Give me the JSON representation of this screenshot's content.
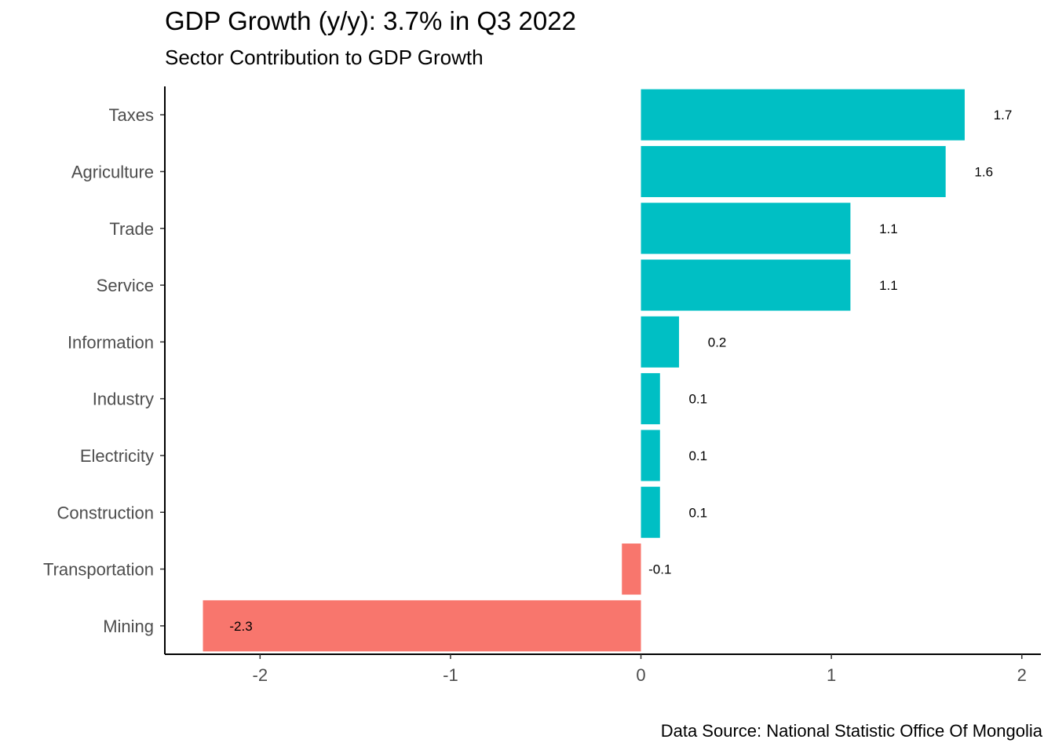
{
  "chart_data": {
    "type": "bar",
    "orientation": "horizontal",
    "title": "GDP Growth (y/y): 3.7% in Q3 2022",
    "subtitle": "Sector Contribution to GDP Growth",
    "caption": "Data Source: National Statistic Office Of Mongolia",
    "xlabel": "",
    "ylabel": "",
    "categories": [
      "Taxes",
      "Agriculture",
      "Trade",
      "Service",
      "Information",
      "Industry",
      "Electricity",
      "Construction",
      "Transportation",
      "Mining"
    ],
    "values": [
      1.7,
      1.6,
      1.1,
      1.1,
      0.2,
      0.1,
      0.1,
      0.1,
      -0.1,
      -2.3
    ],
    "data_labels": [
      "1.7",
      "1.6",
      "1.1",
      "1.1",
      "0.2",
      "0.1",
      "0.1",
      "0.1",
      "-0.1",
      "-2.3"
    ],
    "xlim": [
      -2.5,
      2.1
    ],
    "xticks": [
      -2,
      -1,
      0,
      1,
      2
    ],
    "xtick_labels": [
      "-2",
      "-1",
      "0",
      "1",
      "2"
    ],
    "colors": {
      "positive": "#00BFC4",
      "negative": "#F8766D"
    },
    "grid": false,
    "legend": "none"
  }
}
